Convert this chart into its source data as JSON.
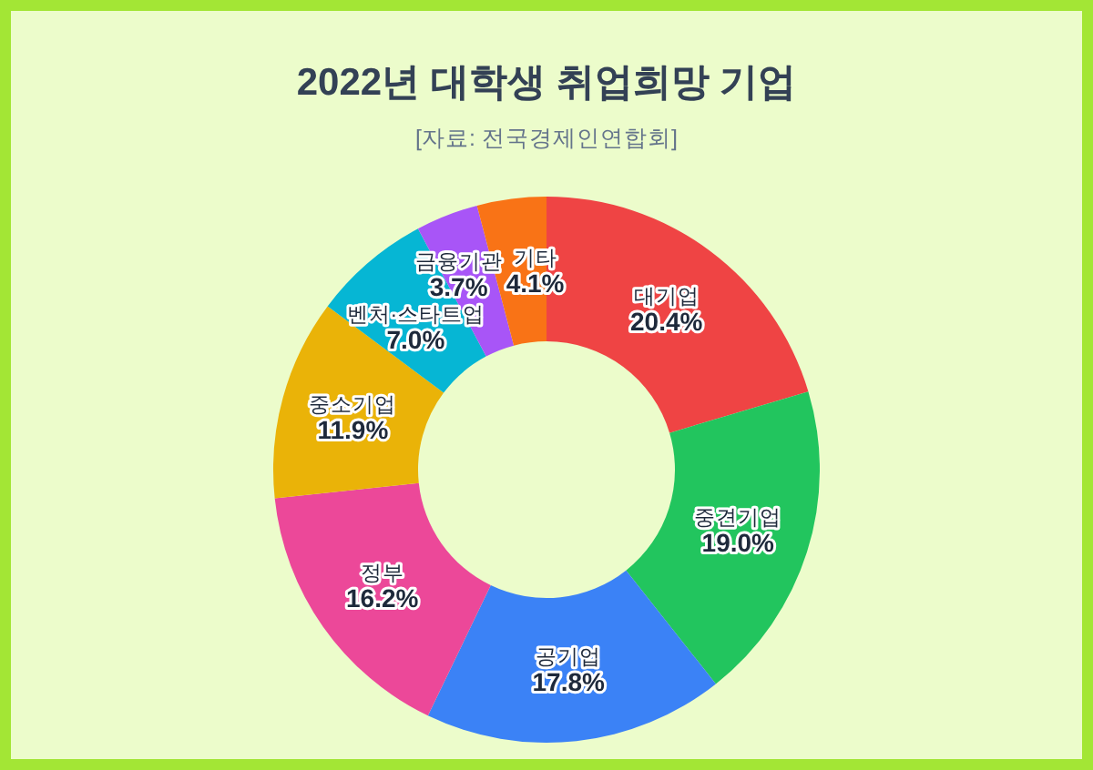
{
  "chart_data": {
    "type": "donut",
    "title": "2022년 대학생 취업희망 기업",
    "subtitle": "[자료: 전국경제인연합회]",
    "categories": [
      "대기업",
      "중견기업",
      "공기업",
      "정부",
      "중소기업",
      "벤처·스타트업",
      "금융기관",
      "기타"
    ],
    "values": [
      20.4,
      19.0,
      17.8,
      16.2,
      11.9,
      7.0,
      3.7,
      4.1
    ],
    "colors": [
      "#ef4444",
      "#22c55e",
      "#3b82f6",
      "#ec4899",
      "#eab308",
      "#06b6d4",
      "#a855f7",
      "#f97316"
    ],
    "value_labels": [
      "20.4%",
      "19.0%",
      "17.8%",
      "16.2%",
      "11.9%",
      "7.0%",
      "3.7%",
      "4.1%"
    ]
  }
}
